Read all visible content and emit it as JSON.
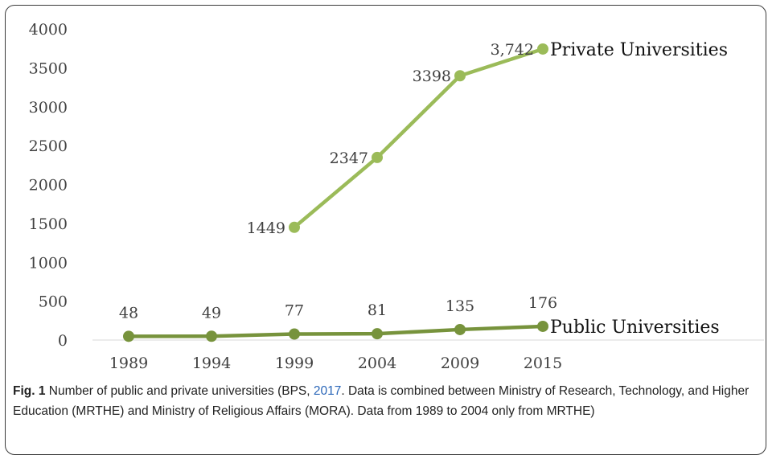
{
  "chart_data": {
    "type": "line",
    "title": "",
    "xlabel": "",
    "ylabel": "",
    "categories": [
      "1989",
      "1994",
      "1999",
      "2004",
      "2009",
      "2015"
    ],
    "ylim": [
      0,
      4000
    ],
    "yticks": [
      "0",
      "500",
      "1000",
      "1500",
      "2000",
      "2500",
      "3000",
      "3500",
      "4000"
    ],
    "grid": false,
    "series": [
      {
        "name": "Private Universities",
        "values": [
          null,
          null,
          1449,
          2347,
          3398,
          3742
        ],
        "labels": [
          "",
          "",
          "1449",
          "2347",
          "3398",
          "3,742"
        ],
        "color": "#9bbb59"
      },
      {
        "name": "Public Universities",
        "values": [
          48,
          49,
          77,
          81,
          135,
          176
        ],
        "labels": [
          "48",
          "49",
          "77",
          "81",
          "135",
          "176"
        ],
        "color": "#77933c"
      }
    ]
  },
  "caption": {
    "label": "Fig. 1",
    "text_before": " Number of public and private universities (BPS, ",
    "link": "2017",
    "text_after": ". Data is combined between Ministry of Research, Technology, and Higher Education (MRTHE) and Ministry of Religious Affairs (MORA). Data from 1989 to 2004 only from MRTHE)"
  }
}
